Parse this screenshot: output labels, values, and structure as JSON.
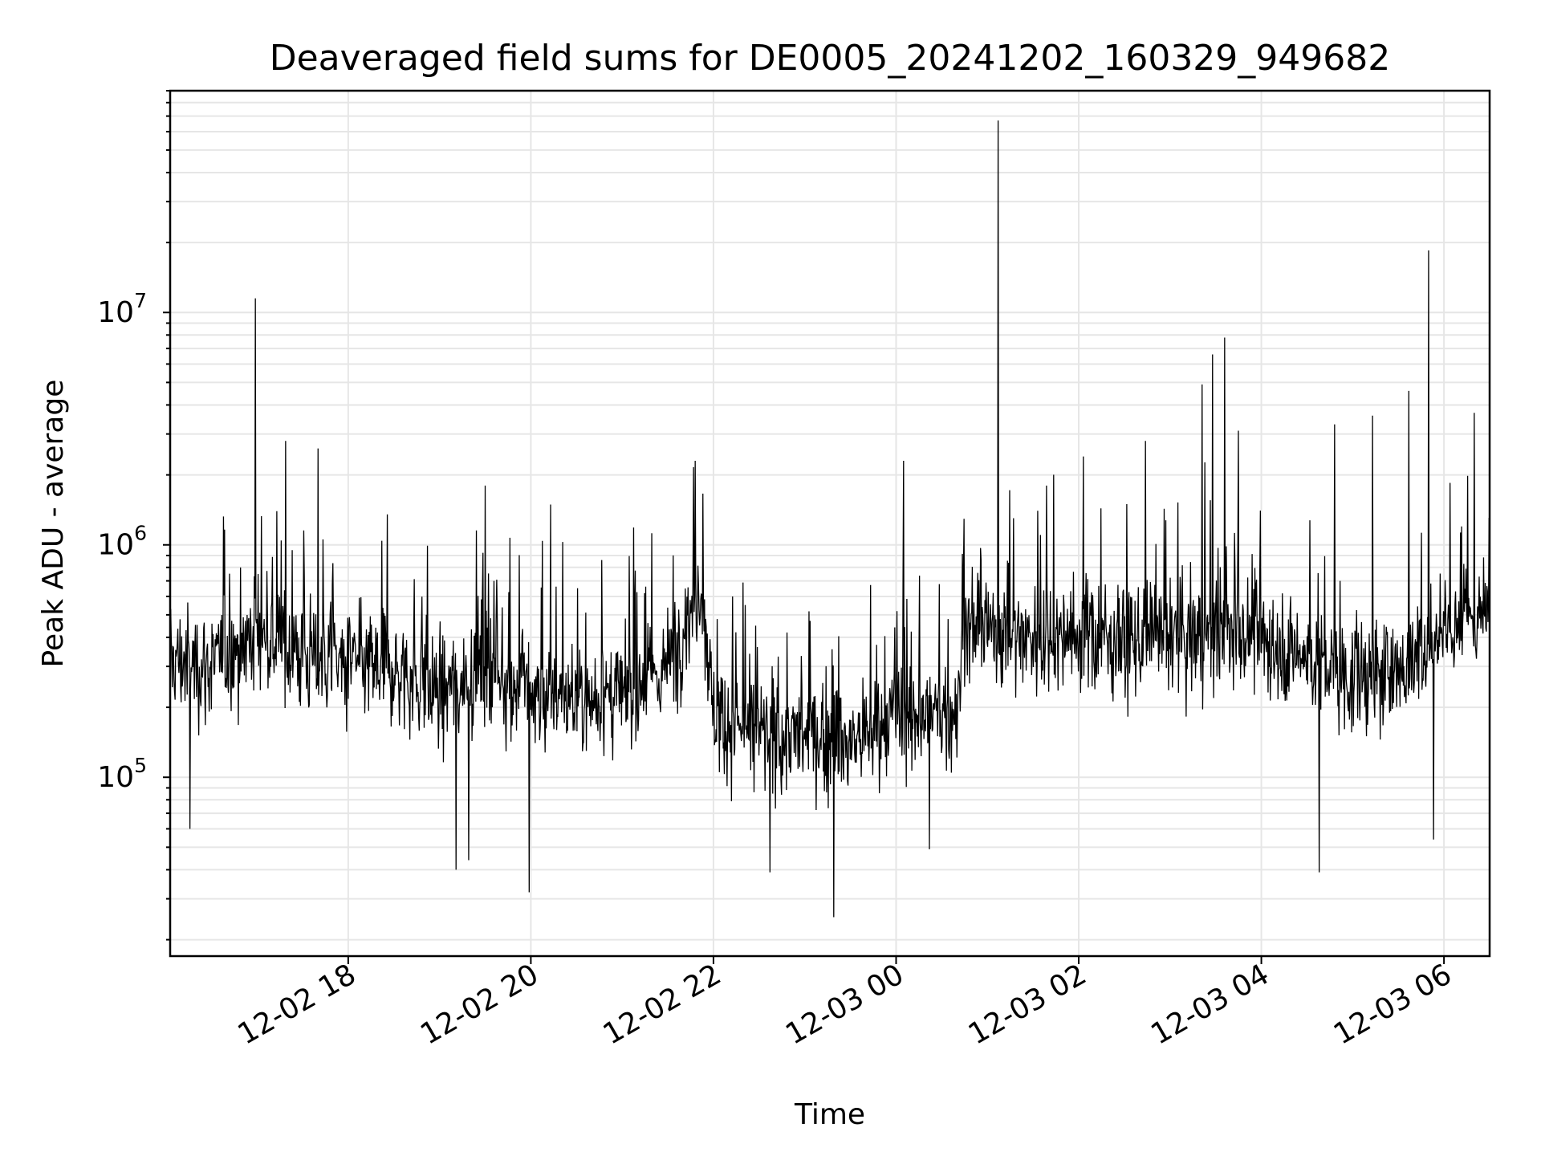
{
  "chart_data": {
    "type": "line",
    "title": "Deaveraged field sums for DE0005_20241202_160329_949682",
    "xlabel": "Time",
    "ylabel": "Peak ADU - average",
    "yscale": "log",
    "grid": "both",
    "x_range": [
      "2024-12-02 16:03",
      "2024-12-03 06:30"
    ],
    "ylim": [
      17000,
      90000000
    ],
    "x_ticks": [
      "12-02 18",
      "12-02 20",
      "12-02 22",
      "12-03 00",
      "12-03 02",
      "12-03 04",
      "12-03 06"
    ],
    "y_ticks": [
      {
        "base": "10",
        "exp": "5",
        "value": 100000
      },
      {
        "base": "10",
        "exp": "6",
        "value": 1000000
      },
      {
        "base": "10",
        "exp": "7",
        "value": 10000000
      }
    ],
    "series": [
      {
        "color": "#000000",
        "baseline_points": [
          {
            "t": "2024-12-02 16:03",
            "y": 320000
          },
          {
            "t": "2024-12-02 16:30",
            "y": 300000
          },
          {
            "t": "2024-12-02 17:00",
            "y": 420000
          },
          {
            "t": "2024-12-02 17:30",
            "y": 330000
          },
          {
            "t": "2024-12-02 18:00",
            "y": 310000
          },
          {
            "t": "2024-12-02 18:30",
            "y": 290000
          },
          {
            "t": "2024-12-02 19:00",
            "y": 230000
          },
          {
            "t": "2024-12-02 19:30",
            "y": 300000
          },
          {
            "t": "2024-12-02 20:00",
            "y": 230000
          },
          {
            "t": "2024-12-02 20:30",
            "y": 220000
          },
          {
            "t": "2024-12-02 21:00",
            "y": 220000
          },
          {
            "t": "2024-12-02 21:30",
            "y": 300000
          },
          {
            "t": "2024-12-02 21:52",
            "y": 700000
          },
          {
            "t": "2024-12-02 22:00",
            "y": 190000
          },
          {
            "t": "2024-12-02 22:30",
            "y": 150000
          },
          {
            "t": "2024-12-02 23:00",
            "y": 150000
          },
          {
            "t": "2024-12-02 23:30",
            "y": 140000
          },
          {
            "t": "2024-12-03 00:00",
            "y": 180000
          },
          {
            "t": "2024-12-03 00:40",
            "y": 190000
          },
          {
            "t": "2024-12-03 00:45",
            "y": 450000
          },
          {
            "t": "2024-12-03 01:30",
            "y": 400000
          },
          {
            "t": "2024-12-03 02:00",
            "y": 420000
          },
          {
            "t": "2024-12-03 02:30",
            "y": 380000
          },
          {
            "t": "2024-12-03 03:00",
            "y": 380000
          },
          {
            "t": "2024-12-03 03:30",
            "y": 420000
          },
          {
            "t": "2024-12-03 04:00",
            "y": 400000
          },
          {
            "t": "2024-12-03 04:30",
            "y": 330000
          },
          {
            "t": "2024-12-03 05:00",
            "y": 260000
          },
          {
            "t": "2024-12-03 05:30",
            "y": 280000
          },
          {
            "t": "2024-12-03 06:00",
            "y": 450000
          },
          {
            "t": "2024-12-03 06:30",
            "y": 500000
          }
        ],
        "peaks": [
          {
            "t": "2024-12-02 16:59",
            "y": 11500000
          },
          {
            "t": "2024-12-02 17:19",
            "y": 2800000
          },
          {
            "t": "2024-12-02 17:40",
            "y": 2600000
          },
          {
            "t": "2024-12-02 19:30",
            "y": 1800000
          },
          {
            "t": "2024-12-02 21:48",
            "y": 2300000
          },
          {
            "t": "2024-12-03 00:05",
            "y": 2300000
          },
          {
            "t": "2024-12-03 01:07",
            "y": 67000000
          },
          {
            "t": "2024-12-03 02:03",
            "y": 2400000
          },
          {
            "t": "2024-12-03 02:44",
            "y": 2800000
          },
          {
            "t": "2024-12-03 03:21",
            "y": 4900000
          },
          {
            "t": "2024-12-03 03:28",
            "y": 6600000
          },
          {
            "t": "2024-12-03 03:36",
            "y": 7800000
          },
          {
            "t": "2024-12-03 03:45",
            "y": 3100000
          },
          {
            "t": "2024-12-03 04:48",
            "y": 3300000
          },
          {
            "t": "2024-12-03 05:13",
            "y": 3600000
          },
          {
            "t": "2024-12-03 05:37",
            "y": 4600000
          },
          {
            "t": "2024-12-03 05:50",
            "y": 18500000
          },
          {
            "t": "2024-12-03 06:20",
            "y": 3700000
          }
        ],
        "dips": [
          {
            "t": "2024-12-02 16:16",
            "y": 60000
          },
          {
            "t": "2024-12-02 19:11",
            "y": 40000
          },
          {
            "t": "2024-12-02 19:19",
            "y": 44000
          },
          {
            "t": "2024-12-02 19:59",
            "y": 32000
          },
          {
            "t": "2024-12-02 22:37",
            "y": 39000
          },
          {
            "t": "2024-12-02 23:19",
            "y": 25000
          },
          {
            "t": "2024-12-03 00:22",
            "y": 49000
          },
          {
            "t": "2024-12-03 04:38",
            "y": 39000
          },
          {
            "t": "2024-12-03 05:53",
            "y": 54000
          }
        ]
      }
    ]
  }
}
